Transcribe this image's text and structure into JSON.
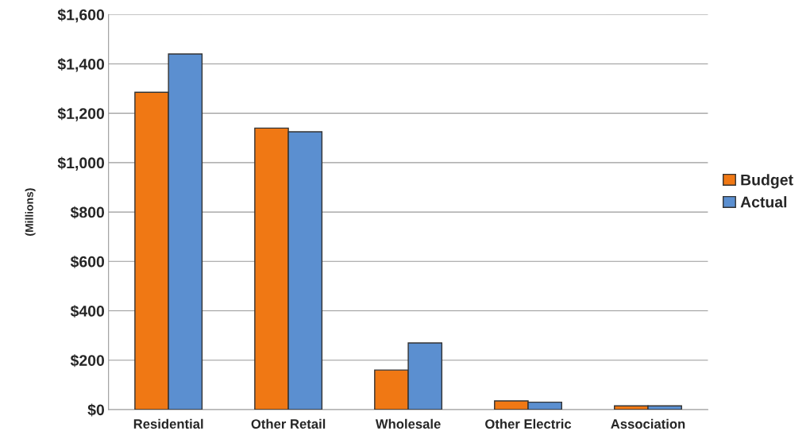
{
  "chart_data": {
    "type": "bar",
    "ylabel": "(Millions)",
    "categories": [
      "Residential",
      "Other Retail",
      "Wholesale",
      "Other Electric",
      "Association"
    ],
    "series": [
      {
        "name": "Budget",
        "color": "#f07814",
        "values": [
          1285,
          1140,
          160,
          35,
          15
        ]
      },
      {
        "name": "Actual",
        "color": "#5b8fd0",
        "values": [
          1440,
          1125,
          270,
          30,
          15
        ]
      }
    ],
    "ylim": [
      0,
      1600
    ],
    "yticks": [
      {
        "value": 0,
        "label": "$0"
      },
      {
        "value": 200,
        "label": "$200"
      },
      {
        "value": 400,
        "label": "$400"
      },
      {
        "value": 600,
        "label": "$600"
      },
      {
        "value": 800,
        "label": "$800"
      },
      {
        "value": 1000,
        "label": "$1,000"
      },
      {
        "value": 1200,
        "label": "$1,200"
      },
      {
        "value": 1400,
        "label": "$1,400"
      },
      {
        "value": 1600,
        "label": "$1,600"
      }
    ],
    "grid": "y",
    "legend": "right"
  }
}
